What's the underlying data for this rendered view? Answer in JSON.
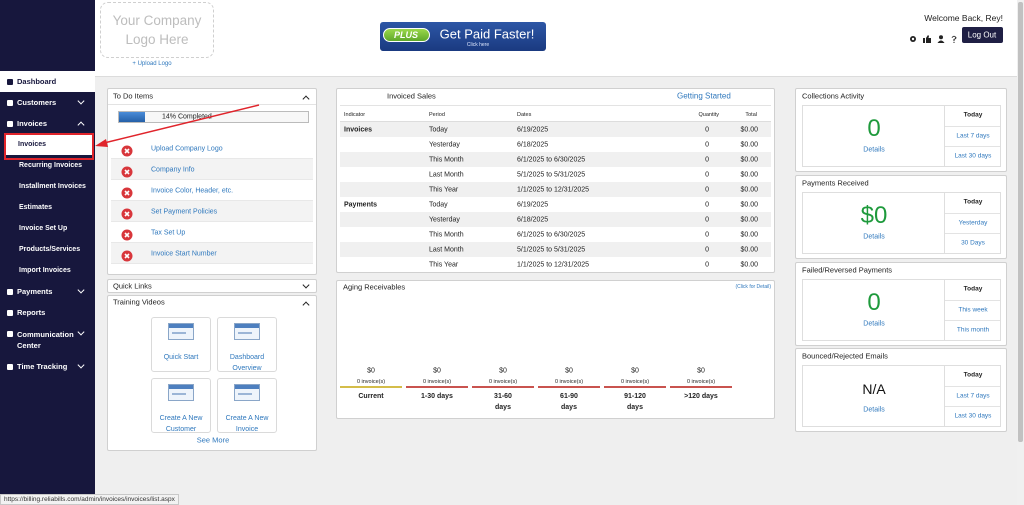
{
  "sidebar": {
    "items": [
      {
        "label": "Dashboard"
      },
      {
        "label": "Customers"
      },
      {
        "label": "Invoices",
        "children": [
          "Invoices",
          "Recurring Invoices",
          "Installment Invoices",
          "Estimates",
          "Invoice Set Up",
          "Products/Services",
          "Import Invoices"
        ]
      },
      {
        "label": "Payments"
      },
      {
        "label": "Reports"
      },
      {
        "label": "Communication Center"
      },
      {
        "label": "Time Tracking"
      }
    ]
  },
  "header": {
    "logo_placeholder": "Your Company Logo Here",
    "upload_logo": "+ Upload Logo",
    "banner": {
      "badge": "PLUS",
      "headline": "Get Paid Faster!",
      "link": "Click here"
    },
    "welcome": "Welcome Back, Rey!",
    "logout": "Log Out"
  },
  "todo": {
    "title": "To Do Items",
    "progress": 14,
    "progress_label": "14% Completed",
    "items": [
      "Upload Company Logo",
      "Company Info",
      "Invoice Color, Header, etc.",
      "Set Payment Policies",
      "Tax Set Up",
      "Invoice Start Number"
    ]
  },
  "quick_links": {
    "title": "Quick Links"
  },
  "training": {
    "title": "Training Videos",
    "videos": [
      "Quick Start",
      "Dashboard Overview",
      "Create A New Customer",
      "Create A New Invoice"
    ],
    "see_more": "See More"
  },
  "invoiced_sales": {
    "title": "Invoiced Sales",
    "link": "Getting Started",
    "columns": [
      "Indicator",
      "Period",
      "Dates",
      "Quantity",
      "Total"
    ],
    "groups": [
      {
        "indicator": "Invoices",
        "rows": [
          [
            "Today",
            "6/19/2025",
            "0",
            "$0.00"
          ],
          [
            "Yesterday",
            "6/18/2025",
            "0",
            "$0.00"
          ],
          [
            "This Month",
            "6/1/2025 to 6/30/2025",
            "0",
            "$0.00"
          ],
          [
            "Last Month",
            "5/1/2025 to 5/31/2025",
            "0",
            "$0.00"
          ],
          [
            "This Year",
            "1/1/2025 to 12/31/2025",
            "0",
            "$0.00"
          ]
        ]
      },
      {
        "indicator": "Payments",
        "rows": [
          [
            "Today",
            "6/19/2025",
            "0",
            "$0.00"
          ],
          [
            "Yesterday",
            "6/18/2025",
            "0",
            "$0.00"
          ],
          [
            "This Month",
            "6/1/2025 to 6/30/2025",
            "0",
            "$0.00"
          ],
          [
            "Last Month",
            "5/1/2025 to 5/31/2025",
            "0",
            "$0.00"
          ],
          [
            "This Year",
            "1/1/2025 to 12/31/2025",
            "0",
            "$0.00"
          ]
        ]
      }
    ]
  },
  "aging": {
    "title": "Aging Receivables",
    "link": "(Click for Detail)",
    "buckets": [
      {
        "amount": "$0",
        "count": "0 invoice(s)",
        "label": "Current"
      },
      {
        "amount": "$0",
        "count": "0 invoice(s)",
        "label": "1-30 days"
      },
      {
        "amount": "$0",
        "count": "0 invoice(s)",
        "label": "31-60 days"
      },
      {
        "amount": "$0",
        "count": "0 invoice(s)",
        "label": "61-90 days"
      },
      {
        "amount": "$0",
        "count": "0 invoice(s)",
        "label": "91-120 days"
      },
      {
        "amount": "$0",
        "count": "0 invoice(s)",
        "label": ">120 days"
      }
    ]
  },
  "stats": [
    {
      "title": "Collections Activity",
      "value": "0",
      "details": "Details",
      "periods": [
        "Today",
        "Last 7 days",
        "Last 30 days"
      ]
    },
    {
      "title": "Payments Received",
      "value": "$0",
      "details": "Details",
      "periods": [
        "Today",
        "Yesterday",
        "30 Days"
      ]
    },
    {
      "title": "Failed/Reversed Payments",
      "value": "0",
      "details": "Details",
      "periods": [
        "Today",
        "This week",
        "This month"
      ]
    },
    {
      "title": "Bounced/Rejected Emails",
      "value": "N/A",
      "details": "Details",
      "periods": [
        "Today",
        "Last 7 days",
        "Last 30 days"
      ]
    }
  ],
  "status_url": "https://billing.reliabills.com/admin/invoices/invoices/list.aspx"
}
